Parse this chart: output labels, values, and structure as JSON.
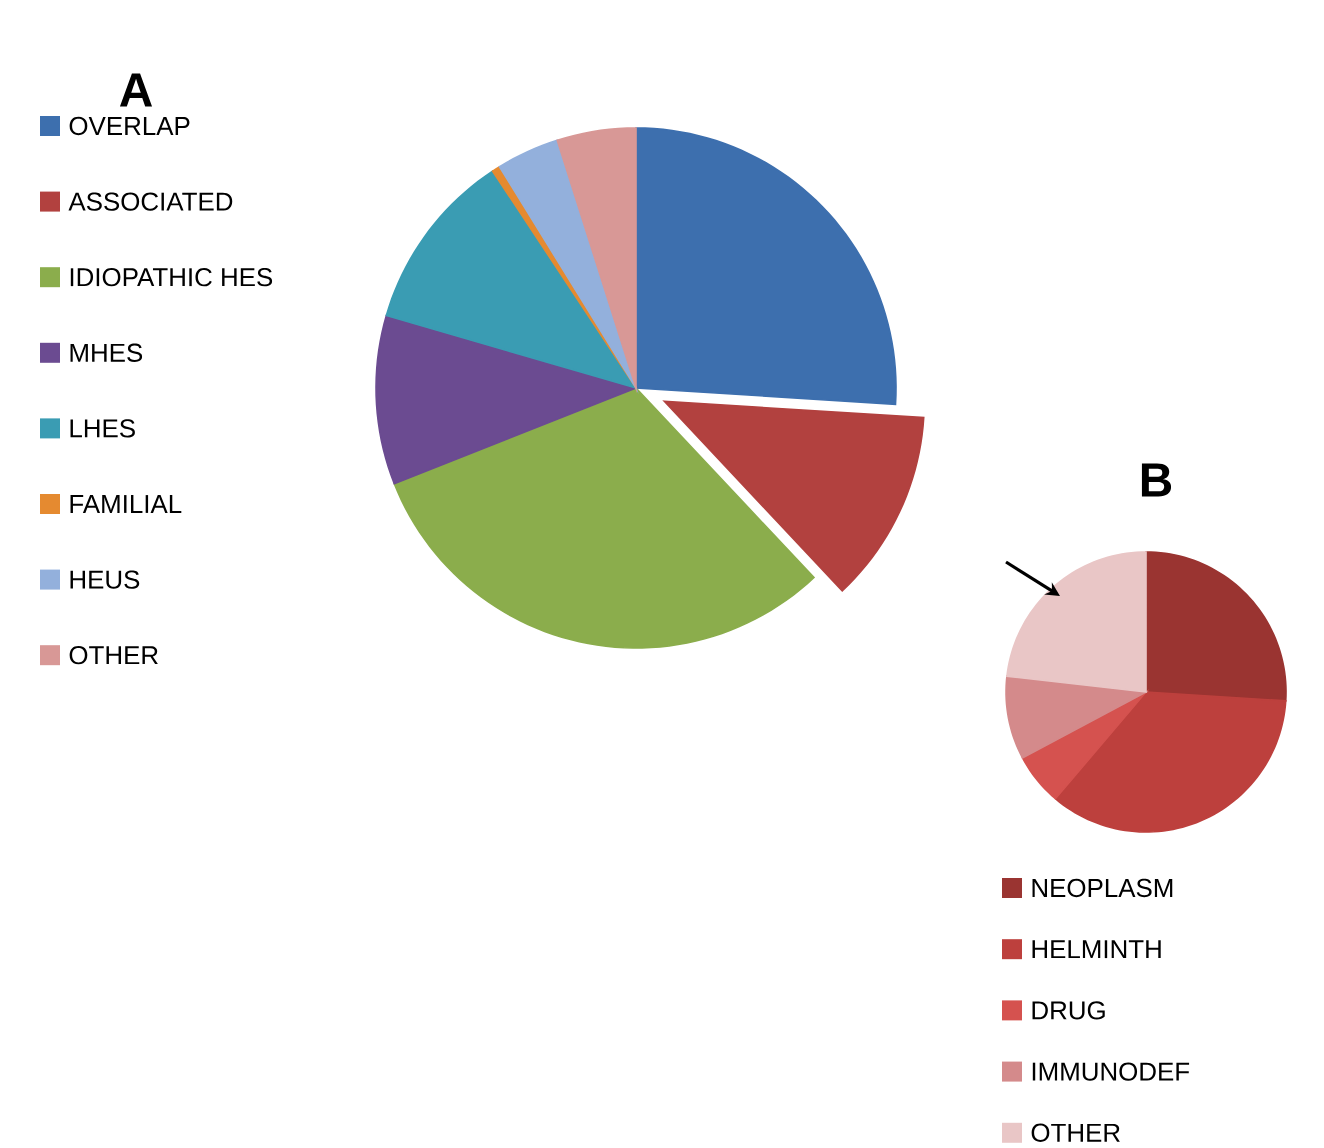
{
  "chart_data": [
    {
      "type": "pie",
      "title": "A",
      "legend": "left",
      "categories": [
        "OVERLAP",
        "ASSOCIATED",
        "IDIOPATHIC HES",
        "MHES",
        "LHES",
        "FAMILIAL",
        "HEUS",
        "OTHER"
      ],
      "values": [
        26,
        12,
        31,
        10.5,
        11.2,
        0.5,
        3.9,
        4.9
      ],
      "colors": [
        "#3d6fae",
        "#b2413f",
        "#8bad4c",
        "#6b4b91",
        "#3a9cb3",
        "#e58a30",
        "#93b0dc",
        "#d89896"
      ]
    },
    {
      "type": "pie",
      "title": "B",
      "legend": "bottom",
      "categories": [
        "NEOPLASM",
        "HELMINTH",
        "DRUG",
        "IMMUNODEF",
        "OTHER"
      ],
      "values": [
        26,
        35.2,
        6,
        9.6,
        23.2
      ],
      "colors": [
        "#9a3431",
        "#bd403d",
        "#d5524f",
        "#d48a8b",
        "#e9c6c6"
      ]
    }
  ]
}
